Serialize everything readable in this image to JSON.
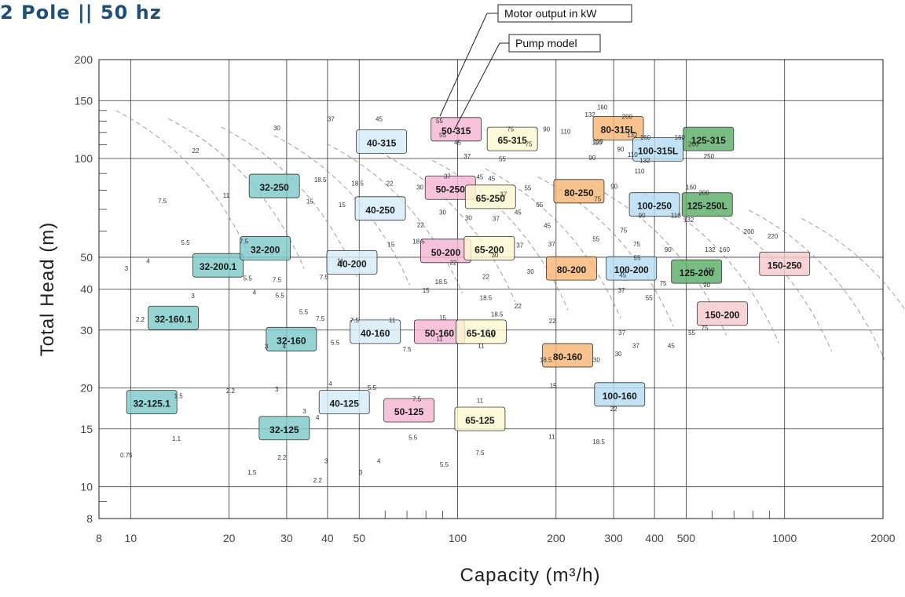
{
  "title": "2 Pole || 50 hz",
  "callouts": {
    "motor": "Motor output in kW",
    "pump": "Pump model"
  },
  "chart_data": {
    "type": "area",
    "xlabel": "Capacity (m³/h)",
    "ylabel": "Total Head (m)",
    "xscale": "log",
    "yscale": "log",
    "xlim": [
      8,
      2000
    ],
    "ylim": [
      8,
      200
    ],
    "x_ticks": [
      8,
      10,
      20,
      30,
      40,
      50,
      100,
      200,
      300,
      400,
      500,
      1000,
      2000
    ],
    "y_ticks": [
      8,
      10,
      15,
      20,
      30,
      40,
      50,
      100,
      150,
      200
    ],
    "grid": true,
    "family_colors": {
      "32": "#7fc9c9",
      "40": "#d6ecf8",
      "50": "#f4b6d2",
      "65": "#fdf8cf",
      "80": "#f6b676",
      "100": "#b6dcf4",
      "125": "#5cae6a",
      "150": "#f7c9cc"
    },
    "models": [
      {
        "name": "32-125.1",
        "family": "32",
        "x": 11.6,
        "y": 18.0
      },
      {
        "name": "32-125",
        "family": "32",
        "x": 29.5,
        "y": 15.0
      },
      {
        "name": "32-160.1",
        "family": "32",
        "x": 13.5,
        "y": 32.5
      },
      {
        "name": "32-160",
        "family": "32",
        "x": 31.0,
        "y": 28.0
      },
      {
        "name": "32-200.1",
        "family": "32",
        "x": 18.5,
        "y": 47.0
      },
      {
        "name": "32-200",
        "family": "32",
        "x": 25.8,
        "y": 53.0
      },
      {
        "name": "32-250",
        "family": "32",
        "x": 27.5,
        "y": 82.0
      },
      {
        "name": "40-125",
        "family": "40",
        "x": 45.0,
        "y": 18.0
      },
      {
        "name": "40-160",
        "family": "40",
        "x": 56.0,
        "y": 29.5
      },
      {
        "name": "40-200",
        "family": "40",
        "x": 47.5,
        "y": 48.0
      },
      {
        "name": "40-250",
        "family": "40",
        "x": 58.0,
        "y": 70.0
      },
      {
        "name": "40-315",
        "family": "40",
        "x": 58.5,
        "y": 112.0
      },
      {
        "name": "50-125",
        "family": "50",
        "x": 71.0,
        "y": 17.0
      },
      {
        "name": "50-160",
        "family": "50",
        "x": 88.0,
        "y": 29.5
      },
      {
        "name": "50-200",
        "family": "50",
        "x": 92.0,
        "y": 52.0
      },
      {
        "name": "50-250",
        "family": "50",
        "x": 95.0,
        "y": 81.0
      },
      {
        "name": "50-315",
        "family": "50",
        "x": 99.0,
        "y": 122.0
      },
      {
        "name": "65-125",
        "family": "65",
        "x": 117.0,
        "y": 16.0
      },
      {
        "name": "65-160",
        "family": "65",
        "x": 118.0,
        "y": 29.5
      },
      {
        "name": "65-200",
        "family": "65",
        "x": 125.0,
        "y": 53.0
      },
      {
        "name": "65-250",
        "family": "65",
        "x": 126.0,
        "y": 76.0
      },
      {
        "name": "65-315",
        "family": "65",
        "x": 147.0,
        "y": 114.0
      },
      {
        "name": "80-160",
        "family": "80",
        "x": 217.0,
        "y": 25.0
      },
      {
        "name": "80-200",
        "family": "80",
        "x": 223.0,
        "y": 46.0
      },
      {
        "name": "80-250",
        "family": "80",
        "x": 235.0,
        "y": 79.0
      },
      {
        "name": "80-315L",
        "family": "80",
        "x": 310.0,
        "y": 123.0
      },
      {
        "name": "100-160",
        "family": "100",
        "x": 313.0,
        "y": 19.0
      },
      {
        "name": "100-200",
        "family": "100",
        "x": 340.0,
        "y": 46.0
      },
      {
        "name": "100-250",
        "family": "100",
        "x": 400.0,
        "y": 72.0
      },
      {
        "name": "100-315L",
        "family": "100",
        "x": 410.0,
        "y": 106.0
      },
      {
        "name": "125-200",
        "family": "125",
        "x": 538.0,
        "y": 45.0
      },
      {
        "name": "125-250L",
        "family": "125",
        "x": 580.0,
        "y": 72.0
      },
      {
        "name": "125-315",
        "family": "125",
        "x": 585.0,
        "y": 114.0
      },
      {
        "name": "150-200",
        "family": "150",
        "x": 645.0,
        "y": 33.5
      },
      {
        "name": "150-250",
        "family": "150",
        "x": 1000.0,
        "y": 47.5
      }
    ],
    "motor_labels": [
      [
        "0.75",
        9.7,
        12.3
      ],
      [
        "1.1",
        13.8,
        13.8
      ],
      [
        "1.5",
        14.0,
        18.6
      ],
      [
        "2.2",
        20.2,
        19.3
      ],
      [
        "3",
        28.0,
        19.5
      ],
      [
        "1.5",
        23.5,
        10.9
      ],
      [
        "2.2",
        29.0,
        12.1
      ],
      [
        "3",
        34.0,
        16.7
      ],
      [
        "4",
        37.3,
        16.0
      ],
      [
        "2.2",
        10.7,
        31.8
      ],
      [
        "3",
        15.5,
        37.5
      ],
      [
        "4",
        23.9,
        38.5
      ],
      [
        "5.5",
        28.6,
        37.6
      ],
      [
        "3",
        26.0,
        26.3
      ],
      [
        "4",
        29.5,
        26.3
      ],
      [
        "5.5",
        33.8,
        33.5
      ],
      [
        "7.5",
        38.0,
        32.0
      ],
      [
        "3",
        9.7,
        45.5
      ],
      [
        "4",
        11.3,
        48.0
      ],
      [
        "5.5",
        22.8,
        42.5
      ],
      [
        "7.5",
        28.0,
        42.0
      ],
      [
        "7.5",
        39.0,
        42.8
      ],
      [
        "5.5",
        14.7,
        54.6
      ],
      [
        "7.5",
        22.2,
        55.0
      ],
      [
        "11",
        43.8,
        48.0
      ],
      [
        "7.5",
        12.5,
        73.0
      ],
      [
        "11",
        19.6,
        76.0
      ],
      [
        "15",
        35.3,
        72.8
      ],
      [
        "18.5",
        38.0,
        84.8
      ],
      [
        "22",
        15.8,
        104.0
      ],
      [
        "30",
        28.0,
        122.0
      ],
      [
        "37",
        41.0,
        130.0
      ],
      [
        "45",
        57.5,
        130.0
      ],
      [
        "3",
        39.6,
        11.8
      ],
      [
        "2.2",
        37.3,
        10.3
      ],
      [
        "4",
        40.8,
        20.3
      ],
      [
        "5.5",
        54.7,
        19.7
      ],
      [
        "5.5",
        42.2,
        27.1
      ],
      [
        "7.5",
        48.4,
        31.7
      ],
      [
        "11",
        63.0,
        31.7
      ],
      [
        "15",
        44.3,
        71.0
      ],
      [
        "18.5",
        49.4,
        82.6
      ],
      [
        "22",
        62.0,
        82.6
      ],
      [
        "30",
        76.7,
        80.5
      ],
      [
        "15",
        62.6,
        53.8
      ],
      [
        "18.5",
        76.0,
        55.0
      ],
      [
        "3",
        50.5,
        10.9
      ],
      [
        "4",
        57.4,
        11.8
      ],
      [
        "5.5",
        73.0,
        13.9
      ],
      [
        "7.5",
        75.0,
        18.2
      ],
      [
        "7.5",
        70.0,
        25.8
      ],
      [
        "11",
        88.0,
        27.8
      ],
      [
        "15",
        90.0,
        32.2
      ],
      [
        "15",
        80.0,
        39.0
      ],
      [
        "18.5",
        89.0,
        41.5
      ],
      [
        "22",
        97.0,
        47.5
      ],
      [
        "22",
        77.0,
        61.8
      ],
      [
        "30",
        90.0,
        67.5
      ],
      [
        "37",
        93.0,
        87.0
      ],
      [
        "45",
        100.0,
        110.0
      ],
      [
        "55",
        88.0,
        128.0
      ],
      [
        "55",
        90.0,
        116.0
      ],
      [
        "37",
        107.0,
        100.0
      ],
      [
        "45",
        117.0,
        86.5
      ],
      [
        "7.5",
        117.0,
        12.5
      ],
      [
        "5.5",
        91.0,
        11.5
      ],
      [
        "11",
        117.0,
        18.0
      ],
      [
        "11",
        118.0,
        26.5
      ],
      [
        "15",
        127.0,
        28.5
      ],
      [
        "18.5",
        122.0,
        37.0
      ],
      [
        "18.5",
        132.0,
        33.0
      ],
      [
        "22",
        122.0,
        43.0
      ],
      [
        "22",
        153.0,
        35.0
      ],
      [
        "30",
        130.0,
        50.0
      ],
      [
        "37",
        155.0,
        53.5
      ],
      [
        "30",
        108.0,
        65.0
      ],
      [
        "37",
        131.0,
        64.5
      ],
      [
        "45",
        153.0,
        67.5
      ],
      [
        "37",
        138.0,
        76.5
      ],
      [
        "45",
        127.0,
        85.5
      ],
      [
        "55",
        164.0,
        80.0
      ],
      [
        "55",
        137.0,
        98.0
      ],
      [
        "75",
        145.0,
        121.0
      ],
      [
        "75",
        165.0,
        109.0
      ],
      [
        "90",
        187.0,
        121.0
      ],
      [
        "110",
        214.0,
        119.0
      ],
      [
        "110",
        269.0,
        111.0
      ],
      [
        "15",
        196.0,
        20.0
      ],
      [
        "11",
        194.0,
        14.0
      ],
      [
        "18.5",
        186.0,
        24.0
      ],
      [
        "22",
        195.0,
        31.5
      ],
      [
        "30",
        266.0,
        24.0
      ],
      [
        "30",
        167.0,
        44.5
      ],
      [
        "37",
        194.0,
        54.0
      ],
      [
        "45",
        188.0,
        61.5
      ],
      [
        "55",
        178.0,
        71.0
      ],
      [
        "55",
        265.0,
        56.0
      ],
      [
        "75",
        268.0,
        74.0
      ],
      [
        "90",
        301.0,
        81.0
      ],
      [
        "90",
        258.0,
        99.0
      ],
      [
        "110",
        267.0,
        110.0
      ],
      [
        "132",
        254.0,
        134.0
      ],
      [
        "160",
        277.0,
        141.0
      ],
      [
        "200",
        330.0,
        132.0
      ],
      [
        "18.5",
        270.0,
        13.5
      ],
      [
        "22",
        300.0,
        17.0
      ],
      [
        "30",
        310.0,
        25.0
      ],
      [
        "37",
        351.0,
        26.5
      ],
      [
        "37",
        318.0,
        29.0
      ],
      [
        "37",
        317.0,
        39.0
      ],
      [
        "45",
        320.0,
        43.5
      ],
      [
        "55",
        354.0,
        49.0
      ],
      [
        "75",
        353.0,
        54.0
      ],
      [
        "90",
        366.0,
        66.0
      ],
      [
        "75",
        322.0,
        59.5
      ],
      [
        "132",
        342.0,
        116.0
      ],
      [
        "110",
        360.0,
        90.0
      ],
      [
        "160",
        375.0,
        114.0
      ],
      [
        "90",
        315.0,
        105.0
      ],
      [
        "110",
        343.0,
        101.0
      ],
      [
        "132",
        374.0,
        97.0
      ],
      [
        "55",
        385.0,
        37.0
      ],
      [
        "75",
        425.0,
        41.0
      ],
      [
        "90",
        440.0,
        52.0
      ],
      [
        "110",
        465.0,
        66.0
      ],
      [
        "132",
        509.0,
        64.0
      ],
      [
        "160",
        478.0,
        114.0
      ],
      [
        "200",
        526.0,
        109.0
      ],
      [
        "250",
        587.0,
        100.0
      ],
      [
        "160",
        518.0,
        80.5
      ],
      [
        "200",
        567.0,
        77.5
      ],
      [
        "45",
        450.0,
        26.5
      ],
      [
        "55",
        520.0,
        29.0
      ],
      [
        "75",
        570.0,
        30.0
      ],
      [
        "90",
        578.0,
        40.5
      ],
      [
        "110",
        590.0,
        45.0
      ],
      [
        "132",
        592.0,
        52.0
      ],
      [
        "160",
        655.0,
        52.0
      ],
      [
        "200",
        778.0,
        59.0
      ],
      [
        "220",
        920.0,
        57.0
      ]
    ]
  }
}
